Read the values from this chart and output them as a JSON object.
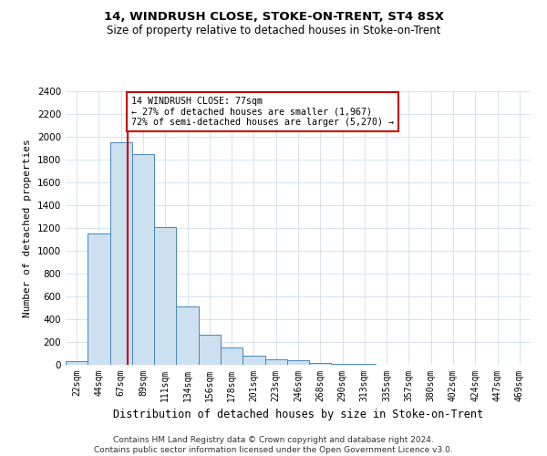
{
  "title": "14, WINDRUSH CLOSE, STOKE-ON-TRENT, ST4 8SX",
  "subtitle": "Size of property relative to detached houses in Stoke-on-Trent",
  "xlabel": "Distribution of detached houses by size in Stoke-on-Trent",
  "ylabel": "Number of detached properties",
  "bin_labels": [
    "22sqm",
    "44sqm",
    "67sqm",
    "89sqm",
    "111sqm",
    "134sqm",
    "156sqm",
    "178sqm",
    "201sqm",
    "223sqm",
    "246sqm",
    "268sqm",
    "290sqm",
    "313sqm",
    "335sqm",
    "357sqm",
    "380sqm",
    "402sqm",
    "424sqm",
    "447sqm",
    "469sqm"
  ],
  "bar_heights": [
    30,
    1150,
    1950,
    1850,
    1210,
    510,
    265,
    155,
    80,
    45,
    40,
    20,
    10,
    5,
    3,
    2,
    1,
    1,
    0,
    0,
    0
  ],
  "bar_color": "#cce0f0",
  "bar_edge_color": "#4488bb",
  "vline_x_index": 2.3,
  "vline_color": "#cc0000",
  "annotation_text": "14 WINDRUSH CLOSE: 77sqm\n← 27% of detached houses are smaller (1,967)\n72% of semi-detached houses are larger (5,270) →",
  "annotation_box_color": "white",
  "annotation_box_edge_color": "#cc0000",
  "ylim": [
    0,
    2400
  ],
  "yticks": [
    0,
    200,
    400,
    600,
    800,
    1000,
    1200,
    1400,
    1600,
    1800,
    2000,
    2200,
    2400
  ],
  "footer_text": "Contains HM Land Registry data © Crown copyright and database right 2024.\nContains public sector information licensed under the Open Government Licence v3.0.",
  "fig_width": 6.0,
  "fig_height": 5.0,
  "background_color": "#ffffff"
}
